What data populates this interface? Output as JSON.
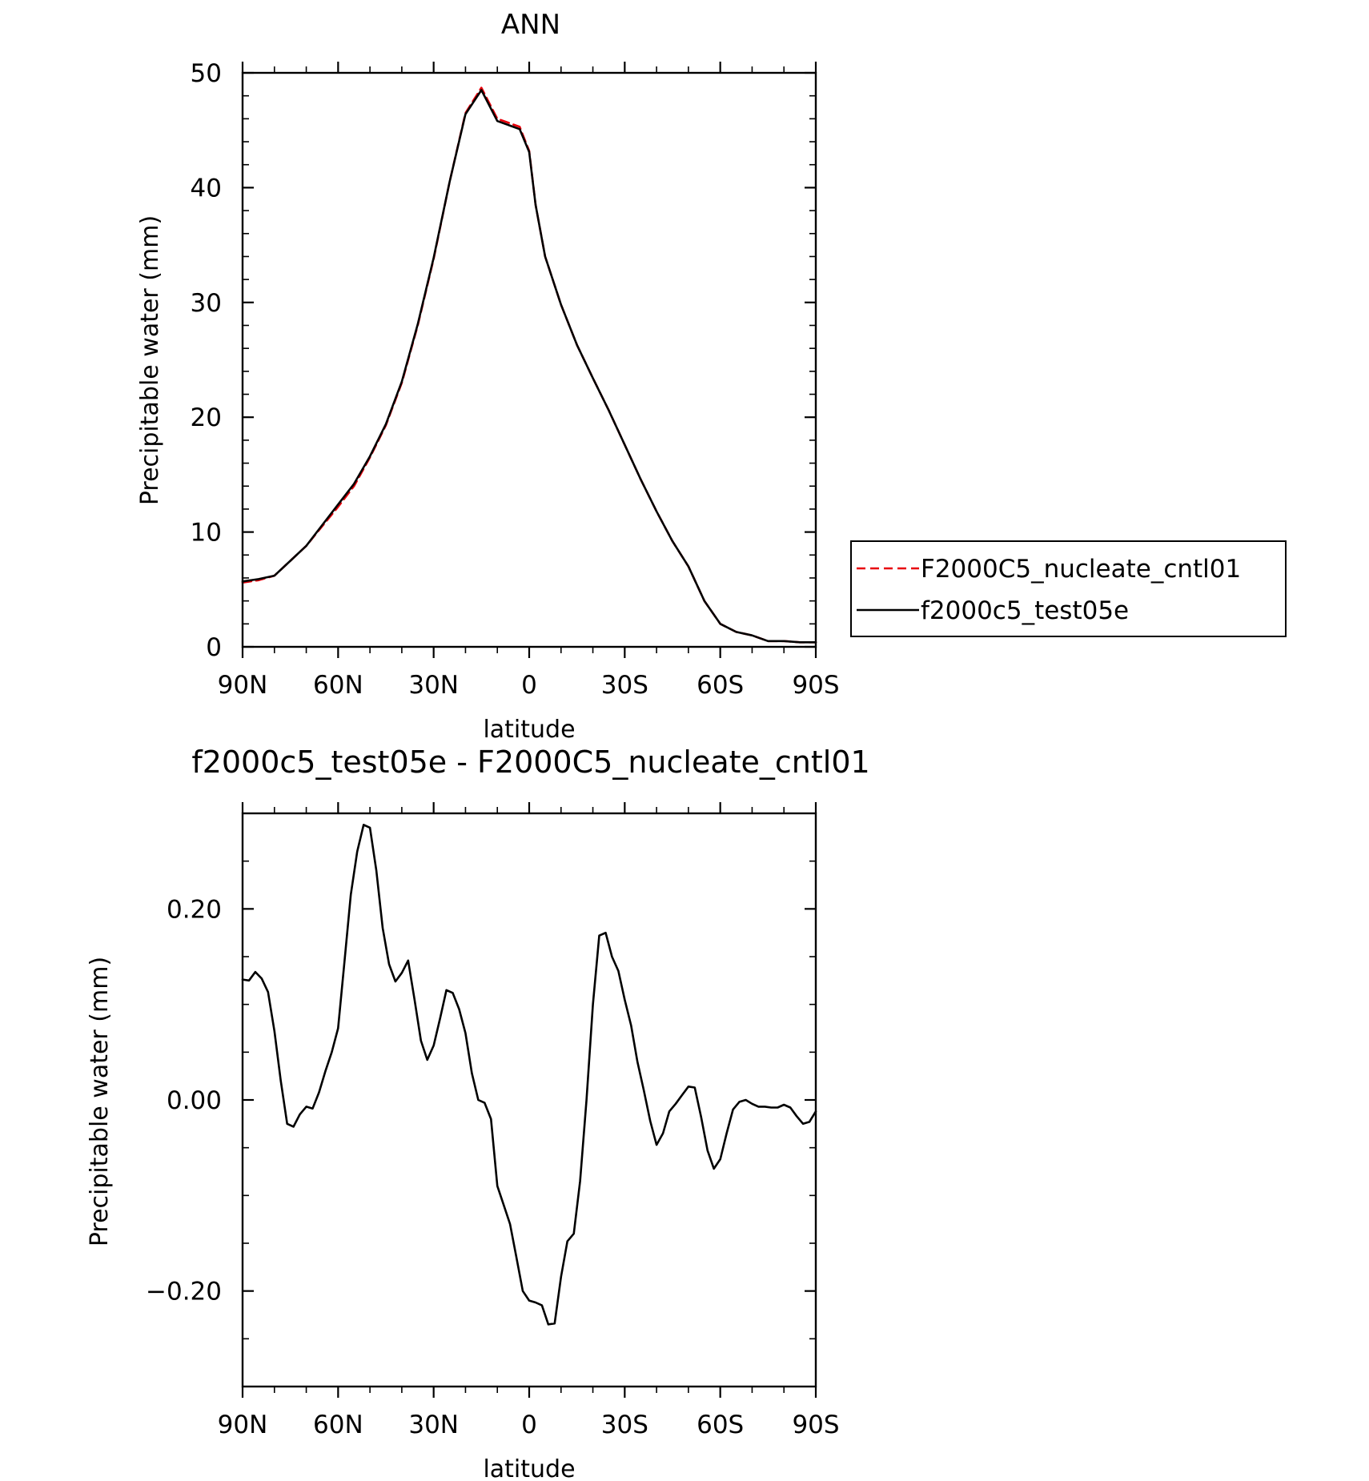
{
  "chart_data": [
    {
      "type": "line",
      "title": "ANN",
      "xlabel": "latitude",
      "ylabel": "Precipitable water (mm)",
      "xlim": [
        90,
        -90
      ],
      "ylim": [
        0,
        50
      ],
      "x_ticks": [
        {
          "value": 90,
          "label": "90N"
        },
        {
          "value": 60,
          "label": "60N"
        },
        {
          "value": 30,
          "label": "30N"
        },
        {
          "value": 0,
          "label": "0"
        },
        {
          "value": -30,
          "label": "30S"
        },
        {
          "value": -60,
          "label": "60S"
        },
        {
          "value": -90,
          "label": "90S"
        }
      ],
      "y_ticks": [
        {
          "value": 0,
          "label": "0"
        },
        {
          "value": 10,
          "label": "10"
        },
        {
          "value": 20,
          "label": "20"
        },
        {
          "value": 30,
          "label": "30"
        },
        {
          "value": 40,
          "label": "40"
        },
        {
          "value": 50,
          "label": "50"
        }
      ],
      "legend_position": "right",
      "grid": false,
      "series": [
        {
          "name": "F2000C5_nucleate_cntl01",
          "color": "#e8000b",
          "dash": "dashed",
          "x": [
            90,
            85,
            80,
            75,
            70,
            65,
            60,
            55,
            50,
            45,
            40,
            35,
            30,
            25,
            20,
            15,
            10,
            5,
            3,
            0,
            -2,
            -5,
            -10,
            -15,
            -20,
            -25,
            -30,
            -35,
            -40,
            -45,
            -50,
            -55,
            -60,
            -65,
            -70,
            -75,
            -80,
            -85,
            -90
          ],
          "y": [
            5.6,
            5.8,
            6.2,
            7.5,
            8.8,
            10.5,
            12.2,
            14.0,
            16.5,
            19.3,
            23.0,
            28.0,
            33.8,
            40.5,
            46.5,
            48.7,
            46.0,
            45.5,
            45.3,
            43.2,
            38.5,
            34.0,
            29.8,
            26.3,
            23.4,
            20.6,
            17.6,
            14.6,
            11.8,
            9.2,
            7.0,
            4.0,
            2.0,
            1.3,
            1.0,
            0.5,
            0.5,
            0.4,
            0.4
          ]
        },
        {
          "name": "f2000c5_test05e",
          "color": "#000000",
          "dash": "solid",
          "x": [
            90,
            85,
            80,
            75,
            70,
            65,
            60,
            55,
            50,
            45,
            40,
            35,
            30,
            25,
            20,
            15,
            10,
            5,
            3,
            0,
            -2,
            -5,
            -10,
            -15,
            -20,
            -25,
            -30,
            -35,
            -40,
            -45,
            -50,
            -55,
            -60,
            -65,
            -70,
            -75,
            -80,
            -85,
            -90
          ],
          "y": [
            5.7,
            5.9,
            6.2,
            7.5,
            8.8,
            10.6,
            12.4,
            14.2,
            16.6,
            19.4,
            23.1,
            28.1,
            33.9,
            40.5,
            46.4,
            48.5,
            45.8,
            45.3,
            45.1,
            43.1,
            38.5,
            34.0,
            29.8,
            26.3,
            23.4,
            20.6,
            17.6,
            14.6,
            11.8,
            9.2,
            7.0,
            4.0,
            2.0,
            1.3,
            1.0,
            0.5,
            0.5,
            0.4,
            0.4
          ]
        }
      ]
    },
    {
      "type": "line",
      "title": "f2000c5_test05e - F2000C5_nucleate_cntl01",
      "xlabel": "latitude",
      "ylabel": "Precipitable water (mm)",
      "xlim": [
        90,
        -90
      ],
      "ylim": [
        -0.3,
        0.3
      ],
      "x_ticks": [
        {
          "value": 90,
          "label": "90N"
        },
        {
          "value": 60,
          "label": "60N"
        },
        {
          "value": 30,
          "label": "30N"
        },
        {
          "value": 0,
          "label": "0"
        },
        {
          "value": -30,
          "label": "30S"
        },
        {
          "value": -60,
          "label": "60S"
        },
        {
          "value": -90,
          "label": "90S"
        }
      ],
      "y_ticks": [
        {
          "value": -0.2,
          "label": "−0.20"
        },
        {
          "value": 0.0,
          "label": "0.00"
        },
        {
          "value": 0.2,
          "label": "0.20"
        }
      ],
      "grid": false,
      "series": [
        {
          "color": "#000000",
          "dash": "solid",
          "x": [
            90,
            88,
            86,
            84,
            82,
            80,
            78,
            76,
            74,
            72,
            70,
            68,
            66,
            64,
            62,
            60,
            58,
            56,
            54,
            52,
            50,
            48,
            46,
            44,
            42,
            40,
            38,
            36,
            34,
            32,
            30,
            28,
            26,
            24,
            22,
            20,
            18,
            16,
            14,
            12,
            10,
            8,
            6,
            4,
            2,
            0,
            -2,
            -4,
            -6,
            -8,
            -10,
            -12,
            -14,
            -16,
            -18,
            -20,
            -22,
            -24,
            -26,
            -28,
            -30,
            -32,
            -34,
            -36,
            -38,
            -40,
            -42,
            -44,
            -46,
            -48,
            -50,
            -52,
            -54,
            -56,
            -58,
            -60,
            -62,
            -64,
            -66,
            -68,
            -70,
            -72,
            -74,
            -76,
            -78,
            -80,
            -82,
            -84,
            -86,
            -88,
            -90
          ],
          "y": [
            0.126,
            0.125,
            0.134,
            0.127,
            0.113,
            0.072,
            0.02,
            -0.025,
            -0.028,
            -0.015,
            -0.007,
            -0.009,
            0.008,
            0.03,
            0.05,
            0.075,
            0.145,
            0.215,
            0.26,
            0.288,
            0.285,
            0.24,
            0.18,
            0.142,
            0.124,
            0.133,
            0.146,
            0.105,
            0.062,
            0.042,
            0.057,
            0.085,
            0.115,
            0.112,
            0.095,
            0.07,
            0.028,
            0.0,
            -0.003,
            -0.02,
            -0.09,
            -0.11,
            -0.13,
            -0.165,
            -0.2,
            -0.21,
            -0.212,
            -0.215,
            -0.235,
            -0.234,
            -0.185,
            -0.148,
            -0.14,
            -0.085,
            0.0,
            0.1,
            0.172,
            0.175,
            0.15,
            0.135,
            0.105,
            0.078,
            0.04,
            0.01,
            -0.022,
            -0.047,
            -0.035,
            -0.012,
            -0.004,
            0.005,
            0.014,
            0.013,
            -0.018,
            -0.053,
            -0.072,
            -0.062,
            -0.035,
            -0.01,
            -0.002,
            0.0,
            -0.004,
            -0.007,
            -0.007,
            -0.008,
            -0.008,
            -0.005,
            -0.008,
            -0.017,
            -0.025,
            -0.023,
            -0.012
          ]
        }
      ]
    }
  ]
}
